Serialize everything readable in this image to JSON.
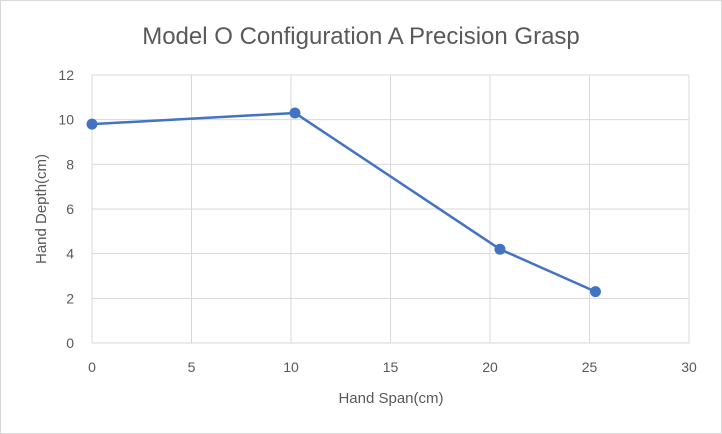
{
  "chart_data": {
    "type": "scatter",
    "title": "Model O Configuration A Precision Grasp",
    "xlabel": "Hand Span(cm)",
    "ylabel": "Hand Depth(cm)",
    "xlim": [
      0,
      30
    ],
    "ylim": [
      0,
      12
    ],
    "x_ticks": [
      "0",
      "5",
      "10",
      "15",
      "20",
      "25",
      "30"
    ],
    "y_ticks": [
      "0",
      "2",
      "4",
      "6",
      "8",
      "10",
      "12"
    ],
    "grid": true,
    "legend": "none",
    "series": [
      {
        "x": [
          0,
          10.2,
          20.5,
          25.3
        ],
        "y": [
          9.8,
          10.3,
          4.2,
          2.3
        ],
        "color": "#4472c4",
        "line": true,
        "markers": true
      }
    ]
  }
}
